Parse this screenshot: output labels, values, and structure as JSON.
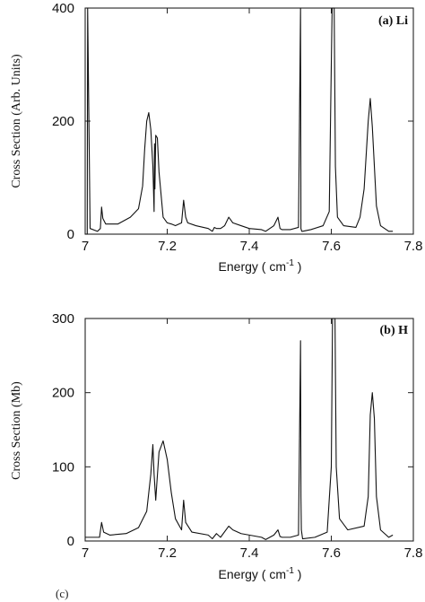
{
  "bottom_note": "(c)",
  "chart_data": [
    {
      "type": "line",
      "panel_label": "(a) Li",
      "xlabel": "Energy ( cm",
      "xlabel_sup": "-1",
      "xlabel_suffix": " )",
      "ylabel": "Cross Section (Arb. Units)",
      "xlim": [
        7,
        7.8
      ],
      "ylim": [
        0,
        400
      ],
      "xticks": [
        7,
        7.2,
        7.4,
        7.6,
        7.8
      ],
      "xtick_labels": [
        "7",
        "7.2",
        "7.4",
        "7.6",
        "7.8"
      ],
      "yticks": [
        0,
        200,
        400
      ],
      "ytick_labels": [
        "0",
        "200",
        "400"
      ],
      "series": [
        {
          "x": [
            7.0,
            7.005,
            7.006,
            7.012,
            7.03,
            7.037,
            7.04,
            7.043,
            7.05,
            7.08,
            7.11,
            7.13,
            7.14,
            7.145,
            7.15,
            7.155,
            7.16,
            7.165,
            7.168,
            7.169,
            7.17,
            7.172,
            7.176,
            7.18,
            7.19,
            7.2,
            7.21,
            7.22,
            7.235,
            7.24,
            7.245,
            7.25,
            7.27,
            7.3,
            7.31,
            7.315,
            7.32,
            7.33,
            7.34,
            7.35,
            7.36,
            7.38,
            7.4,
            7.43,
            7.44,
            7.46,
            7.47,
            7.475,
            7.48,
            7.5,
            7.52,
            7.525,
            7.526,
            7.528,
            7.53,
            7.55,
            7.58,
            7.595,
            7.6,
            7.602,
            7.605,
            7.607,
            7.61,
            7.615,
            7.63,
            7.66,
            7.67,
            7.68,
            7.69,
            7.695,
            7.7,
            7.71,
            7.72,
            7.74,
            7.75
          ],
          "y": [
            0,
            0,
            400,
            10,
            5,
            10,
            48,
            28,
            18,
            18,
            30,
            45,
            85,
            150,
            200,
            215,
            185,
            120,
            40,
            160,
            80,
            175,
            170,
            110,
            30,
            20,
            18,
            15,
            20,
            60,
            30,
            20,
            15,
            10,
            5,
            12,
            10,
            10,
            15,
            30,
            20,
            15,
            10,
            8,
            5,
            15,
            30,
            10,
            8,
            8,
            12,
            400,
            10,
            5,
            5,
            8,
            15,
            40,
            300,
            400,
            400,
            400,
            120,
            30,
            15,
            12,
            30,
            80,
            200,
            240,
            190,
            50,
            15,
            5,
            5
          ]
        }
      ]
    },
    {
      "type": "line",
      "panel_label": "(b) H",
      "xlabel": "Energy ( cm",
      "xlabel_sup": "-1",
      "xlabel_suffix": " )",
      "ylabel": "Cross Section (Mb)",
      "xlim": [
        7,
        7.8
      ],
      "ylim": [
        0,
        300
      ],
      "xticks": [
        7,
        7.2,
        7.4,
        7.6,
        7.8
      ],
      "xtick_labels": [
        "7",
        "7.2",
        "7.4",
        "7.6",
        "7.8"
      ],
      "yticks": [
        0,
        100,
        200,
        300
      ],
      "ytick_labels": [
        "0",
        "100",
        "200",
        "300"
      ],
      "series": [
        {
          "x": [
            7.0,
            7.035,
            7.04,
            7.045,
            7.06,
            7.1,
            7.13,
            7.15,
            7.16,
            7.165,
            7.168,
            7.172,
            7.175,
            7.18,
            7.19,
            7.2,
            7.21,
            7.22,
            7.235,
            7.24,
            7.245,
            7.26,
            7.3,
            7.31,
            7.32,
            7.33,
            7.35,
            7.36,
            7.38,
            7.4,
            7.43,
            7.44,
            7.46,
            7.47,
            7.475,
            7.48,
            7.5,
            7.52,
            7.525,
            7.526,
            7.527,
            7.53,
            7.56,
            7.59,
            7.6,
            7.603,
            7.606,
            7.609,
            7.612,
            7.62,
            7.64,
            7.68,
            7.69,
            7.695,
            7.7,
            7.705,
            7.71,
            7.72,
            7.74,
            7.75
          ],
          "y": [
            5,
            5,
            25,
            12,
            8,
            10,
            18,
            40,
            90,
            130,
            90,
            55,
            80,
            120,
            135,
            110,
            65,
            30,
            15,
            55,
            25,
            12,
            8,
            3,
            10,
            5,
            20,
            15,
            10,
            8,
            5,
            2,
            8,
            15,
            6,
            5,
            5,
            8,
            270,
            60,
            15,
            3,
            5,
            12,
            100,
            300,
            300,
            300,
            100,
            30,
            15,
            20,
            60,
            170,
            200,
            165,
            60,
            15,
            5,
            8
          ]
        }
      ]
    }
  ]
}
